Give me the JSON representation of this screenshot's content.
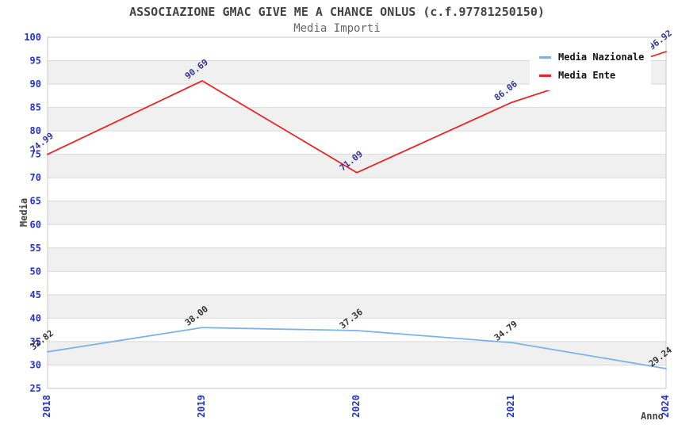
{
  "title": "ASSOCIAZIONE GMAC GIVE ME A CHANCE ONLUS (c.f.97781250150)",
  "subtitle": "Media Importi",
  "chart_data": {
    "type": "line",
    "categories": [
      "2018",
      "2019",
      "2020",
      "2021",
      "2024"
    ],
    "series": [
      {
        "name": "Media Nazionale",
        "color": "#7cb2e8",
        "label_color": "#333333",
        "values": [
          32.82,
          38.0,
          37.36,
          34.79,
          29.24
        ]
      },
      {
        "name": "Media Ente",
        "color": "#e82525",
        "label_color": "#333399",
        "values": [
          74.99,
          90.69,
          71.09,
          86.06,
          96.92
        ]
      }
    ],
    "xlabel": "Anno",
    "ylabel": "Media",
    "ylim": [
      25,
      100
    ],
    "ytick_step": 5,
    "grid": "horizontal-bands",
    "legend_position": "top-right",
    "tick_label_color": "#2233cc",
    "band_colors": [
      "#ffffff",
      "#f0f0f0"
    ],
    "gridline_color": "#d9d9d9",
    "border_color": "#c8c8c8",
    "value_label_decimals": 2
  }
}
